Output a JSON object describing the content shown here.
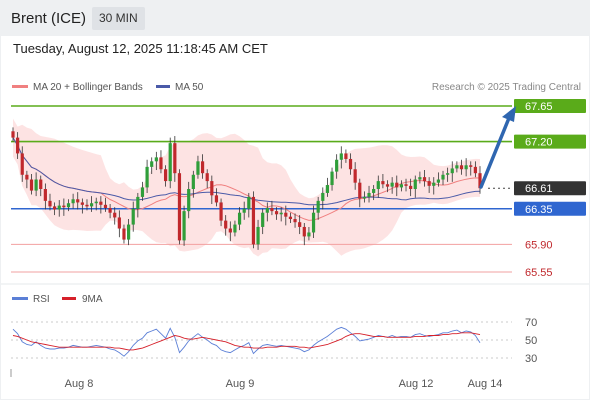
{
  "header": {
    "instrument": "Brent (ICE)",
    "interval": "30 MIN",
    "datetime": "Tuesday, August 12, 2025 11:18:45 AM CET"
  },
  "credit": "Research © 2025 Trading Central",
  "colors": {
    "up_candle": "#2f9e3a",
    "down_candle": "#c0282c",
    "ma20": "#f08080",
    "bollinger_fill": "#fde0e0",
    "ma50": "#4a5aa8",
    "green_level": "#5aab1a",
    "blue_level": "#2f66d0",
    "red_level": "#f2a0a0",
    "current_price": "#333333",
    "arrow": "#2f66b0",
    "rsi": "#5b7fd6",
    "rsi_ma": "#d6202a"
  },
  "chart_data": [
    {
      "type": "candlestick",
      "title": "Brent (ICE)",
      "interval": "30 MIN",
      "legend": [
        {
          "name": "MA 20 + Bollinger Bands",
          "color": "#f08080"
        },
        {
          "name": "MA 50",
          "color": "#4a5aa8"
        }
      ],
      "x_ticks": [
        "Aug 8",
        "Aug 9",
        "Aug 12",
        "Aug 14"
      ],
      "ylim": [
        65.5,
        67.8
      ],
      "levels": [
        {
          "label": "67.65",
          "value": 67.65,
          "kind": "resistance"
        },
        {
          "label": "67.20",
          "value": 67.2,
          "kind": "resistance"
        },
        {
          "label": "66.61",
          "value": 66.61,
          "kind": "current"
        },
        {
          "label": "66.35",
          "value": 66.35,
          "kind": "pivot"
        },
        {
          "label": "65.90",
          "value": 65.9,
          "kind": "support"
        },
        {
          "label": "65.55",
          "value": 65.55,
          "kind": "support"
        }
      ],
      "close": [
        67.25,
        67.05,
        66.78,
        66.72,
        66.58,
        66.72,
        66.6,
        66.45,
        66.38,
        66.34,
        66.39,
        66.37,
        66.42,
        66.47,
        66.43,
        66.4,
        66.38,
        66.42,
        66.44,
        66.4,
        66.36,
        66.3,
        66.24,
        66.1,
        65.96,
        66.15,
        66.35,
        66.5,
        66.62,
        66.88,
        66.95,
        67.0,
        66.85,
        66.7,
        67.18,
        66.8,
        65.95,
        66.32,
        66.6,
        66.78,
        66.95,
        66.8,
        66.7,
        66.52,
        66.43,
        66.2,
        66.1,
        66.05,
        66.15,
        66.3,
        66.35,
        66.5,
        65.9,
        66.12,
        66.3,
        66.36,
        66.32,
        66.28,
        66.3,
        66.25,
        66.22,
        66.18,
        66.12,
        66.0,
        66.05,
        66.3,
        66.45,
        66.55,
        66.65,
        66.82,
        66.97,
        67.05,
        66.98,
        66.85,
        66.68,
        66.48,
        66.5,
        66.55,
        66.6,
        66.7,
        66.66,
        66.63,
        66.68,
        66.62,
        66.66,
        66.64,
        66.6,
        66.72,
        66.75,
        66.7,
        66.64,
        66.68,
        66.72,
        66.78,
        66.8,
        66.86,
        66.9,
        66.85,
        66.9,
        66.88,
        66.8,
        66.61
      ],
      "series": [
        {
          "name": "RSI",
          "color": "#5b7fd6",
          "values": [
            62,
            57,
            48,
            45,
            44,
            48,
            44,
            41,
            40,
            40,
            41,
            41,
            42,
            44,
            43,
            42,
            42,
            43,
            44,
            43,
            42,
            40,
            39,
            36,
            32,
            37,
            44,
            49,
            52,
            58,
            60,
            62,
            57,
            52,
            63,
            53,
            36,
            42,
            49,
            53,
            57,
            53,
            50,
            46,
            44,
            39,
            37,
            36,
            39,
            42,
            44,
            47,
            35,
            40,
            44,
            45,
            44,
            43,
            44,
            43,
            42,
            41,
            40,
            37,
            39,
            44,
            48,
            51,
            54,
            58,
            62,
            64,
            62,
            58,
            54,
            49,
            50,
            51,
            53,
            55,
            54,
            53,
            55,
            53,
            54,
            54,
            53,
            56,
            57,
            55,
            54,
            55,
            56,
            58,
            58,
            60,
            61,
            58,
            60,
            59,
            55,
            47
          ]
        },
        {
          "name": "9MA",
          "color": "#d6202a",
          "values": [
            55,
            54,
            52,
            50,
            48,
            47,
            46,
            45,
            44,
            43,
            42,
            42,
            42,
            42,
            42,
            42,
            42,
            42,
            42,
            42,
            42,
            42,
            41,
            41,
            40,
            39,
            39,
            40,
            41,
            43,
            45,
            47,
            49,
            51,
            53,
            55,
            54,
            52,
            51,
            51,
            52,
            53,
            52,
            51,
            50,
            49,
            48,
            46,
            44,
            43,
            42,
            42,
            41,
            41,
            41,
            42,
            42,
            42,
            43,
            43,
            43,
            43,
            42,
            42,
            41,
            42,
            43,
            44,
            45,
            47,
            49,
            51,
            54,
            56,
            57,
            57,
            56,
            55,
            54,
            54,
            54,
            53,
            53,
            53,
            53,
            53,
            53,
            54,
            54,
            54,
            55,
            55,
            55,
            56,
            56,
            57,
            57,
            58,
            58,
            58,
            57,
            56
          ]
        }
      ],
      "rsi_ticks": [
        "70",
        "50",
        "30"
      ]
    }
  ]
}
